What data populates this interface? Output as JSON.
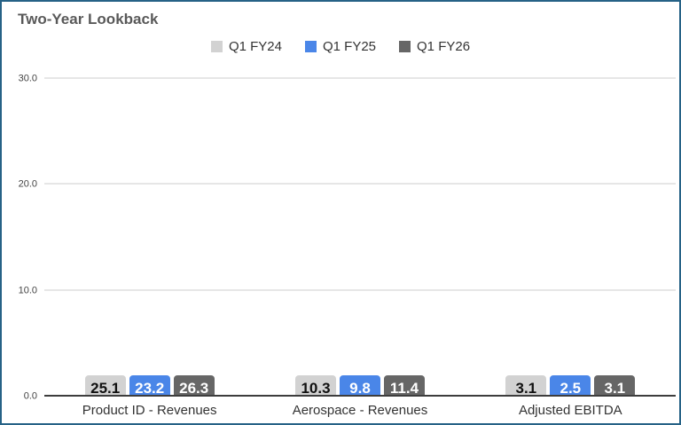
{
  "window": {
    "title": "Two-Year Lookback"
  },
  "colors": {
    "frame_border": "#266286",
    "title_text": "#595959",
    "gridline": "#e6e6e6",
    "axis_line": "#3d3d3d",
    "tick_text": "#444444",
    "category_text": "#333333"
  },
  "chart_data": {
    "type": "bar",
    "title": "Two-Year Lookback",
    "categories": [
      "Product ID - Revenues",
      "Aerospace - Revenues",
      "Adjusted EBITDA"
    ],
    "series": [
      {
        "name": "Q1 FY24",
        "color": "#d2d2d2",
        "label_color": "#111111",
        "values": [
          25.1,
          10.3,
          3.1
        ]
      },
      {
        "name": "Q1 FY25",
        "color": "#4a86e8",
        "label_color": "#ffffff",
        "values": [
          23.2,
          9.8,
          2.5
        ]
      },
      {
        "name": "Q1 FY26",
        "color": "#666666",
        "label_color": "#ffffff",
        "values": [
          26.3,
          11.4,
          3.1
        ]
      }
    ],
    "xlabel": "",
    "ylabel": "",
    "ylim": [
      0,
      30
    ],
    "yticks": [
      0,
      10,
      20,
      30
    ],
    "ytick_labels": [
      "0.0",
      "10.0",
      "20.0",
      "30.0"
    ],
    "grid": true,
    "legend_position": "top",
    "value_labels": "inside-top"
  }
}
